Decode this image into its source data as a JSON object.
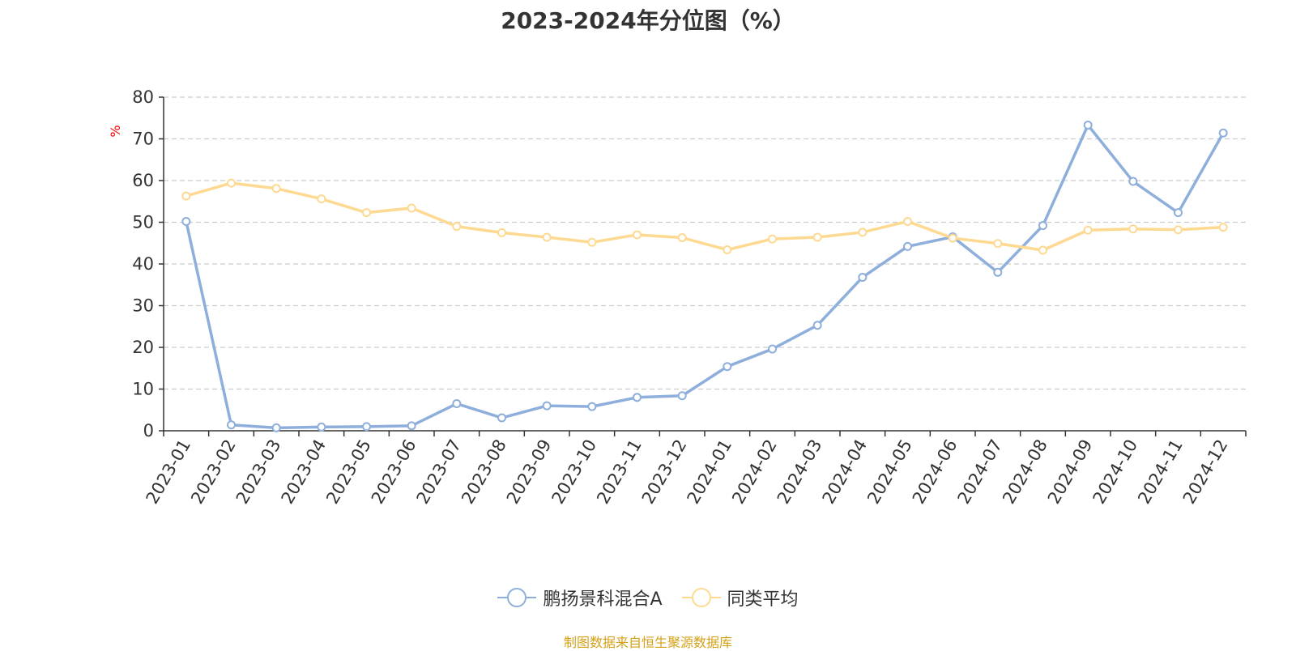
{
  "title": "2023-2024年分位图（%）",
  "source_note": "制图数据来自恒生聚源数据库",
  "chart_data": {
    "type": "line",
    "title": "2023-2024年分位图（%）",
    "xlabel": "",
    "ylabel": "%",
    "ylim": [
      0,
      80
    ],
    "yticks": [
      0,
      10,
      20,
      30,
      40,
      50,
      60,
      70,
      80
    ],
    "grid": true,
    "legend_position": "bottom",
    "categories": [
      "2023-01",
      "2023-02",
      "2023-03",
      "2023-04",
      "2023-05",
      "2023-06",
      "2023-07",
      "2023-08",
      "2023-09",
      "2023-10",
      "2023-11",
      "2023-12",
      "2024-01",
      "2024-02",
      "2024-03",
      "2024-04",
      "2024-05",
      "2024-06",
      "2024-07",
      "2024-08",
      "2024-09",
      "2024-10",
      "2024-11",
      "2024-12"
    ],
    "series": [
      {
        "name": "鹏扬景科混合A",
        "color": "#8eaedb",
        "values": [
          50.2,
          1.4,
          0.7,
          0.9,
          1.0,
          1.2,
          6.5,
          3.1,
          6.0,
          5.8,
          8.0,
          8.4,
          15.4,
          19.6,
          25.3,
          36.8,
          44.2,
          46.5,
          38.0,
          49.2,
          73.3,
          59.8,
          52.3,
          71.4
        ]
      },
      {
        "name": "同类平均",
        "color": "#fdd992",
        "values": [
          56.3,
          59.4,
          58.1,
          55.6,
          52.3,
          53.4,
          49.0,
          47.5,
          46.4,
          45.2,
          47.0,
          46.3,
          43.4,
          46.0,
          46.4,
          47.6,
          50.2,
          46.2,
          44.9,
          43.3,
          48.1,
          48.4,
          48.2,
          48.8
        ]
      }
    ]
  }
}
